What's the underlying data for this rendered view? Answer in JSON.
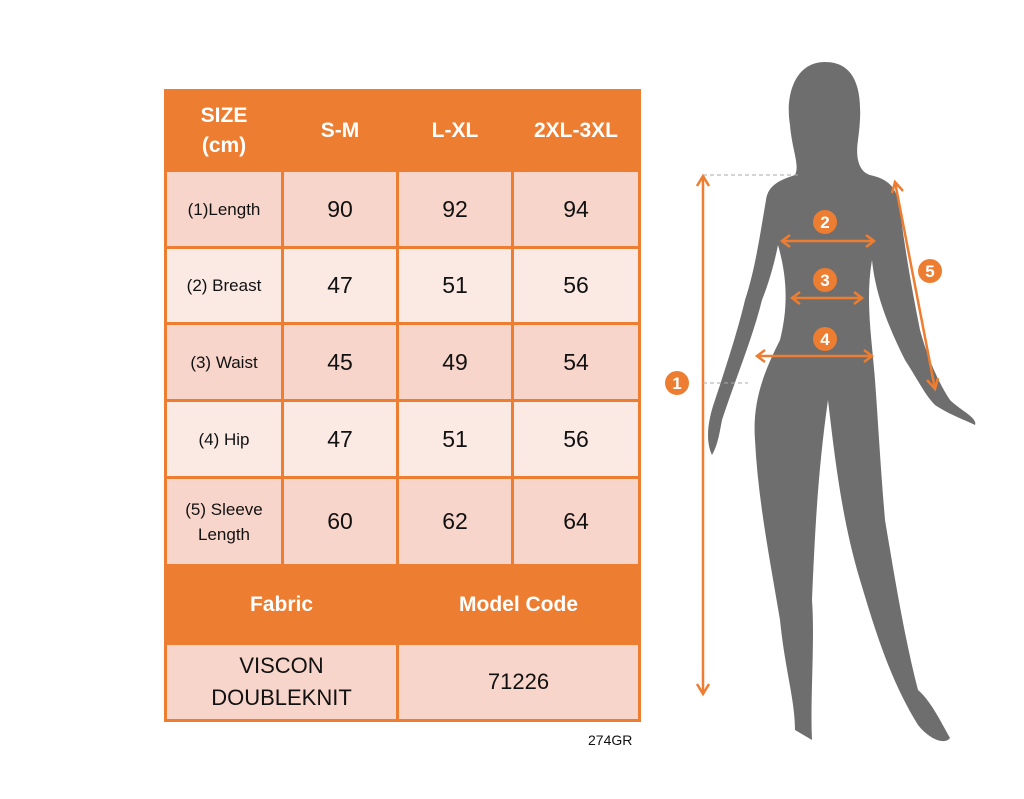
{
  "table": {
    "header": [
      "SIZE\n(cm)",
      "S-M",
      "L-XL",
      "2XL-3XL"
    ],
    "header_line1": "SIZE",
    "header_line2": "(cm)",
    "rows": [
      {
        "label": "(1)Length",
        "values": [
          "90",
          "92",
          "94"
        ]
      },
      {
        "label": "(2) Breast",
        "values": [
          "47",
          "51",
          "56"
        ]
      },
      {
        "label": "(3) Waist",
        "values": [
          "45",
          "49",
          "54"
        ]
      },
      {
        "label": "(4) Hip",
        "values": [
          "47",
          "51",
          "56"
        ]
      },
      {
        "label_line1": "(5) Sleeve",
        "label_line2": "Length",
        "values": [
          "60",
          "62",
          "64"
        ]
      }
    ],
    "fabric_label": "Fabric",
    "model_code_label": "Model Code",
    "fabric_line1": "VISCON",
    "fabric_line2": "DOUBLEKNIT",
    "model_code": "71226"
  },
  "product_code": "274GR",
  "figure": {
    "markers": [
      "1",
      "2",
      "3",
      "4",
      "5"
    ]
  },
  "colors": {
    "accent": "#ED7D31",
    "row_dark": "#F8D5CB",
    "row_light": "#FBEAE4",
    "silhouette": "#6E6E6E"
  }
}
